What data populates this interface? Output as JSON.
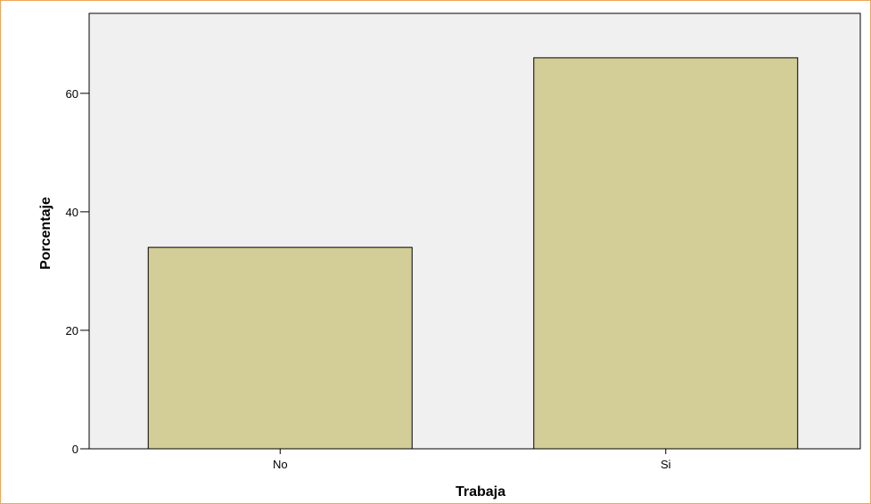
{
  "chart_data": {
    "type": "bar",
    "categories": [
      "No",
      "Si"
    ],
    "values": [
      34,
      66
    ],
    "xlabel": "Trabaja",
    "ylabel": "Porcentaje",
    "ylim": [
      0,
      73.5
    ],
    "yticks": [
      0,
      20,
      40,
      60
    ],
    "grid": false,
    "colors": {
      "bar_fill": "#d3ce98",
      "bar_stroke": "#000000",
      "plot_background": "#f0f0f0",
      "frame_border": "#f0a65a"
    }
  }
}
